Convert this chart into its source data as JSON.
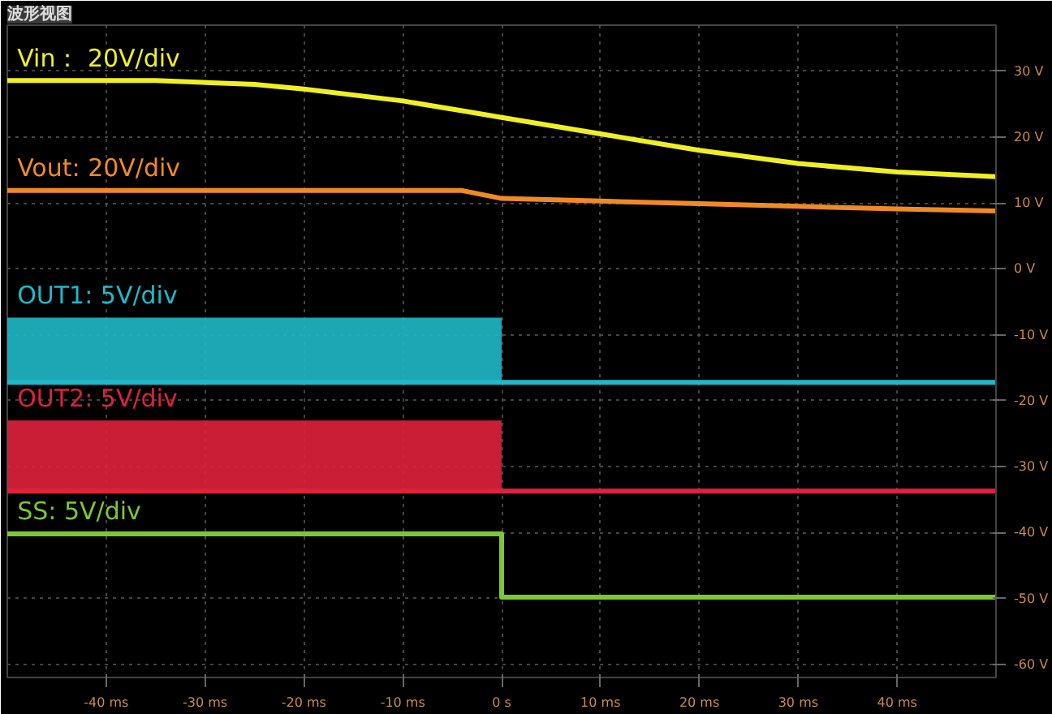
{
  "chart_data": {
    "type": "line",
    "title": "波形视图",
    "xlim": [
      -50,
      50
    ],
    "ylim": [
      -62,
      37
    ],
    "xticks": [
      {
        "value": -40,
        "label": "-40 ms"
      },
      {
        "value": -30,
        "label": "-30 ms"
      },
      {
        "value": -20,
        "label": "-20 ms"
      },
      {
        "value": -10,
        "label": "-10 ms"
      },
      {
        "value": 0,
        "label": "0 s"
      },
      {
        "value": 10,
        "label": "10 ms"
      },
      {
        "value": 20,
        "label": "20 ms"
      },
      {
        "value": 30,
        "label": "30 ms"
      },
      {
        "value": 40,
        "label": "40 ms"
      }
    ],
    "yticks": [
      {
        "value": 30,
        "label": "30 V"
      },
      {
        "value": 20,
        "label": "20 V"
      },
      {
        "value": 10,
        "label": "10 V"
      },
      {
        "value": 0,
        "label": "0 V"
      },
      {
        "value": -10,
        "label": "-10 V"
      },
      {
        "value": -20,
        "label": "-20 V"
      },
      {
        "value": -30,
        "label": "-30 V"
      },
      {
        "value": -40,
        "label": "-40 V"
      },
      {
        "value": -50,
        "label": "-50 V"
      },
      {
        "value": -60,
        "label": "-60 V"
      }
    ],
    "grid": true,
    "line_style": "solid",
    "x": [
      -50,
      -35,
      -25,
      -20,
      -10,
      -4,
      0,
      10,
      20,
      30,
      40,
      50
    ],
    "series": [
      {
        "name": "Vin：  20V/div",
        "color": "#f0f020",
        "values": [
          28.6,
          28.6,
          28,
          27.3,
          25.5,
          24,
          23,
          20.5,
          18,
          16,
          14.7,
          14
        ]
      },
      {
        "name": "Vout: 20V/div",
        "color": "#f08a24",
        "values": [
          11.9,
          11.9,
          11.9,
          11.9,
          11.9,
          11.9,
          10.7,
          10.3,
          9.9,
          9.5,
          9.1,
          8.8
        ]
      },
      {
        "name": "OUT1: 5V/div",
        "color": "#20b8c8",
        "values": [
          -17.2,
          -17.2,
          -17.2,
          -17.2,
          -17.2,
          -17.2,
          -17.2,
          -17.2,
          -17.2,
          -17.2,
          -17.2,
          -17.2
        ],
        "lower": [
          -17.2,
          -17.2,
          -17.2,
          -17.2,
          -17.2,
          -17.2,
          -17.2,
          null,
          null,
          null,
          null,
          null
        ],
        "upper": [
          -7.4,
          -7.4,
          -7.4,
          -7.4,
          -7.4,
          -7.4,
          -7.4,
          null,
          null,
          null,
          null,
          null
        ]
      },
      {
        "name": "OUT2: 5V/div",
        "color": "#e0203c",
        "values": [
          -33.7,
          -33.7,
          -33.7,
          -33.7,
          -33.7,
          -33.7,
          -33.7,
          -33.7,
          -33.7,
          -33.7,
          -33.7,
          -33.7
        ],
        "lower": [
          -33.7,
          -33.7,
          -33.7,
          -33.7,
          -33.7,
          -33.7,
          -33.7,
          null,
          null,
          null,
          null,
          null
        ],
        "upper": [
          -23,
          -23,
          -23,
          -23,
          -23,
          -23,
          -23,
          null,
          null,
          null,
          null,
          null
        ]
      },
      {
        "name": "SS: 5V/div",
        "color": "#7cc832",
        "x": [
          -50,
          -35,
          -25,
          -20,
          -10,
          -4,
          0,
          0.001,
          10,
          20,
          30,
          40,
          50
        ],
        "values": [
          -40.2,
          -40.2,
          -40.2,
          -40.2,
          -40.2,
          -40.2,
          -40.2,
          -49.8,
          -49.8,
          -49.8,
          -49.8,
          -49.8,
          -49.8
        ]
      }
    ]
  }
}
